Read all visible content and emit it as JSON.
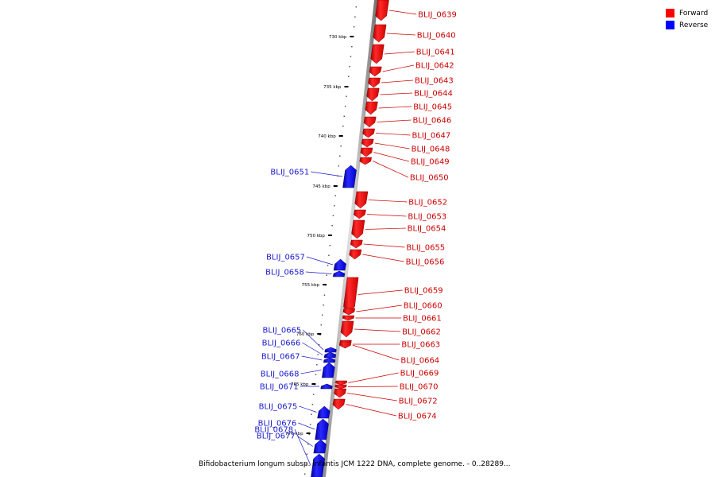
{
  "legend": {
    "forward_label": "Forward",
    "reverse_label": "Reverse",
    "forward_color": "#ff0000",
    "reverse_color": "#0000ff"
  },
  "caption": "Bifidobacterium longum subsp. infantis JCM 1222 DNA, complete genome. - 0..28289...",
  "ticks": [
    "730 kbp",
    "735 kbp",
    "740 kbp",
    "745 kbp",
    "750 kbp",
    "755 kbp",
    "760 kbp",
    "765 kbp",
    "770 kbp"
  ],
  "genes": [
    {
      "name": "BLIJ_0639",
      "strand": "forward"
    },
    {
      "name": "BLIJ_0640",
      "strand": "forward"
    },
    {
      "name": "BLIJ_0641",
      "strand": "forward"
    },
    {
      "name": "BLIJ_0642",
      "strand": "forward"
    },
    {
      "name": "BLIJ_0643",
      "strand": "forward"
    },
    {
      "name": "BLIJ_0644",
      "strand": "forward"
    },
    {
      "name": "BLIJ_0645",
      "strand": "forward"
    },
    {
      "name": "BLIJ_0646",
      "strand": "forward"
    },
    {
      "name": "BLIJ_0647",
      "strand": "forward"
    },
    {
      "name": "BLIJ_0648",
      "strand": "forward"
    },
    {
      "name": "BLIJ_0649",
      "strand": "forward"
    },
    {
      "name": "BLIJ_0650",
      "strand": "forward"
    },
    {
      "name": "BLIJ_0651",
      "strand": "reverse"
    },
    {
      "name": "BLIJ_0652",
      "strand": "forward"
    },
    {
      "name": "BLIJ_0653",
      "strand": "forward"
    },
    {
      "name": "BLIJ_0654",
      "strand": "forward"
    },
    {
      "name": "BLIJ_0655",
      "strand": "forward"
    },
    {
      "name": "BLIJ_0656",
      "strand": "forward"
    },
    {
      "name": "BLIJ_0657",
      "strand": "reverse"
    },
    {
      "name": "BLIJ_0658",
      "strand": "reverse"
    },
    {
      "name": "BLIJ_0659",
      "strand": "forward"
    },
    {
      "name": "BLIJ_0660",
      "strand": "forward"
    },
    {
      "name": "BLIJ_0661",
      "strand": "forward"
    },
    {
      "name": "BLIJ_0662",
      "strand": "forward"
    },
    {
      "name": "BLIJ_0663",
      "strand": "forward"
    },
    {
      "name": "BLIJ_0664",
      "strand": "forward"
    },
    {
      "name": "BLIJ_0665",
      "strand": "reverse"
    },
    {
      "name": "BLIJ_0666",
      "strand": "reverse"
    },
    {
      "name": "BLIJ_0667",
      "strand": "reverse"
    },
    {
      "name": "BLIJ_0668",
      "strand": "reverse"
    },
    {
      "name": "BLIJ_0669",
      "strand": "forward"
    },
    {
      "name": "BLIJ_0670",
      "strand": "forward"
    },
    {
      "name": "BLIJ_0671",
      "strand": "reverse"
    },
    {
      "name": "BLIJ_0672",
      "strand": "forward"
    },
    {
      "name": "BLIJ_0674",
      "strand": "forward"
    },
    {
      "name": "BLIJ_0675",
      "strand": "reverse"
    },
    {
      "name": "BLIJ_0676",
      "strand": "reverse"
    },
    {
      "name": "BLIJ_0677",
      "strand": "reverse"
    },
    {
      "name": "BLIJ_0678",
      "strand": "reverse"
    }
  ]
}
